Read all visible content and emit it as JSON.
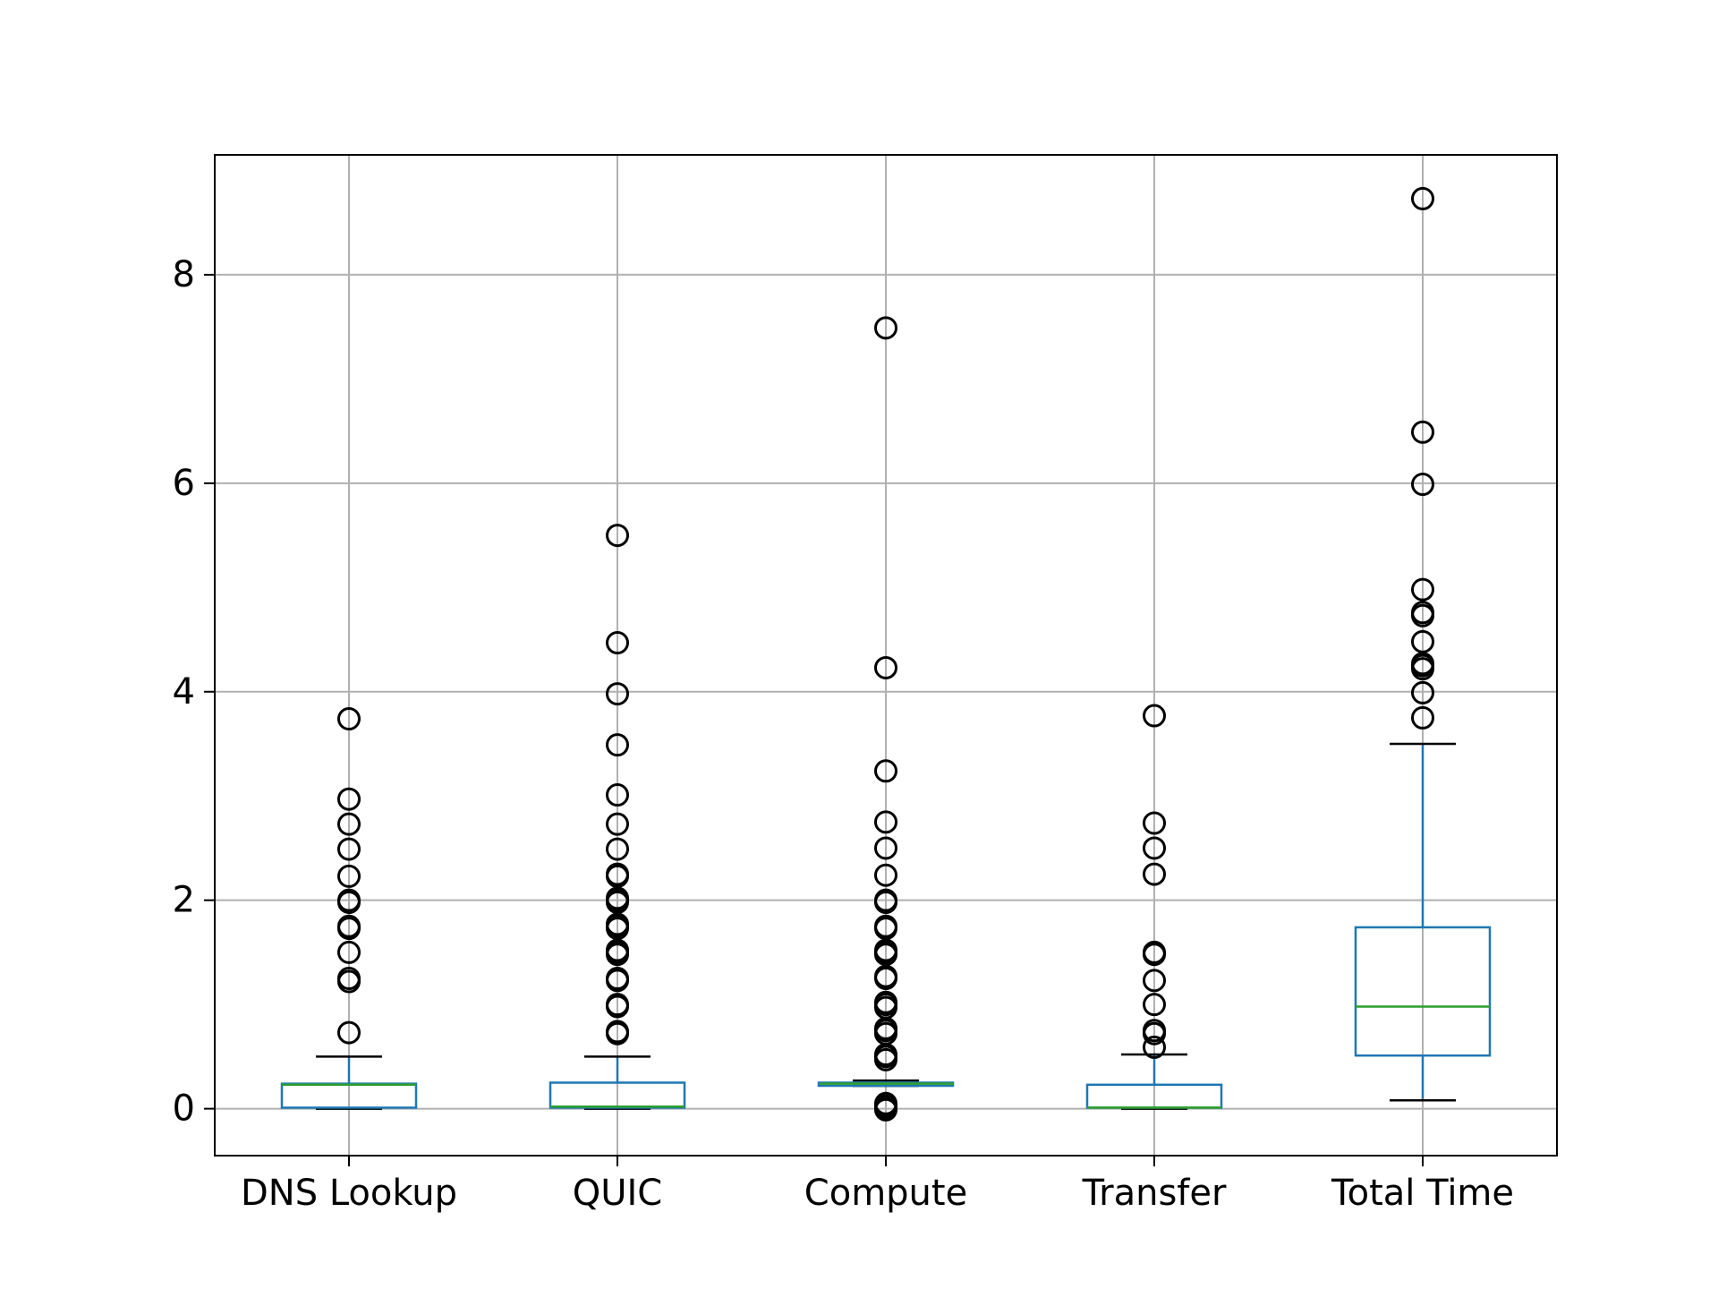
{
  "chart_data": {
    "type": "box",
    "title": "",
    "xlabel": "",
    "ylabel": "",
    "ylim": [
      -0.45,
      9.15
    ],
    "yticks": [
      0,
      2,
      4,
      6,
      8
    ],
    "grid": true,
    "categories": [
      "DNS Lookup",
      "QUIC",
      "Compute",
      "Transfer",
      "Total Time"
    ],
    "boxes": [
      {
        "name": "DNS Lookup",
        "whisker_low": 0.0,
        "q1": 0.01,
        "median": 0.23,
        "q3": 0.24,
        "whisker_high": 0.5,
        "outliers": [
          0.73,
          1.22,
          1.25,
          1.5,
          1.73,
          1.75,
          1.98,
          2.0,
          2.23,
          2.49,
          2.73,
          2.97,
          3.74
        ]
      },
      {
        "name": "QUIC",
        "whisker_low": 0.0,
        "q1": 0.01,
        "median": 0.02,
        "q3": 0.25,
        "whisker_high": 0.5,
        "outliers": [
          0.72,
          0.74,
          0.98,
          1.0,
          1.23,
          1.25,
          1.48,
          1.5,
          1.52,
          1.73,
          1.75,
          1.77,
          1.98,
          2.0,
          2.02,
          2.23,
          2.25,
          2.49,
          2.73,
          3.01,
          3.49,
          3.98,
          4.47,
          5.5
        ]
      },
      {
        "name": "Compute",
        "whisker_low": 0.22,
        "q1": 0.22,
        "median": 0.24,
        "q3": 0.25,
        "whisker_high": 0.27,
        "outliers": [
          -0.01,
          0.01,
          0.03,
          0.05,
          0.47,
          0.5,
          0.52,
          0.72,
          0.75,
          0.77,
          0.97,
          1.0,
          1.02,
          1.25,
          1.27,
          1.48,
          1.5,
          1.52,
          1.73,
          1.75,
          1.98,
          2.0,
          2.24,
          2.5,
          2.75,
          3.24,
          4.23,
          7.49
        ]
      },
      {
        "name": "Transfer",
        "whisker_low": 0.0,
        "q1": 0.01,
        "median": 0.01,
        "q3": 0.23,
        "whisker_high": 0.52,
        "outliers": [
          0.59,
          0.72,
          0.75,
          1.0,
          1.23,
          1.48,
          1.5,
          2.25,
          2.5,
          2.74,
          3.77
        ]
      },
      {
        "name": "Total Time",
        "whisker_low": 0.08,
        "q1": 0.51,
        "median": 0.98,
        "q3": 1.74,
        "whisker_high": 3.5,
        "outliers": [
          3.75,
          3.99,
          4.22,
          4.25,
          4.27,
          4.48,
          4.73,
          4.76,
          4.98,
          5.99,
          6.49,
          8.73
        ]
      }
    ],
    "colors": {
      "box": "#1f77b4",
      "median": "#2ca02c",
      "whisker_cap": "#000000",
      "outlier": "#000000",
      "grid": "#b0b0b0"
    }
  }
}
